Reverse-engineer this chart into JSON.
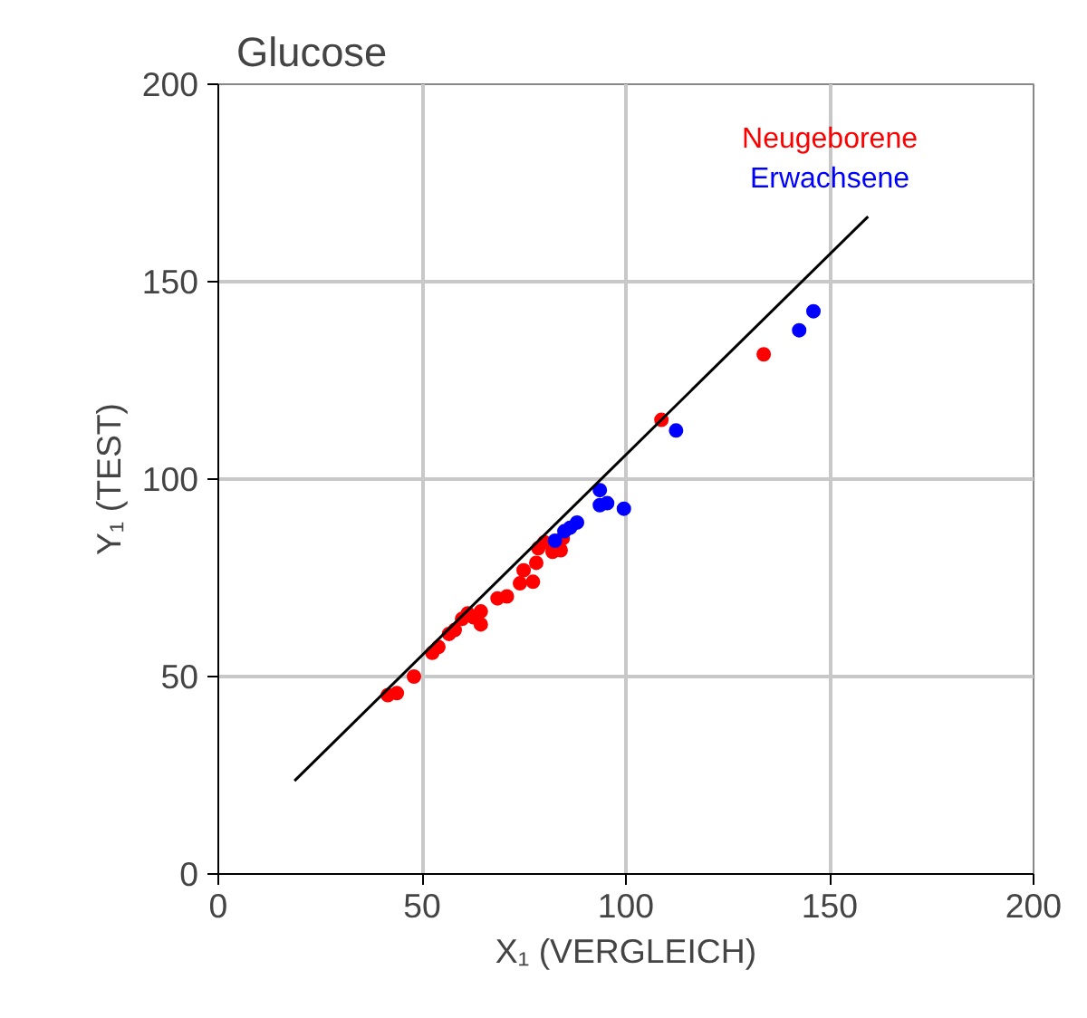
{
  "chart_data": {
    "type": "scatter",
    "title": "Glucose",
    "xlabel": "X₁ (VERGLEICH)",
    "ylabel": "Y₁ (TEST)",
    "xlim": [
      0,
      200
    ],
    "ylim": [
      0,
      200
    ],
    "xticks": [
      0,
      50,
      100,
      150,
      200
    ],
    "yticks": [
      0,
      50,
      100,
      150,
      200
    ],
    "grid": true,
    "legend": "top right",
    "marker": "circle",
    "series": [
      {
        "name": "Neugeborene",
        "color": "#ff0000",
        "x": [
          41.6,
          43.8,
          48,
          52.5,
          54,
          56.6,
          58,
          59.8,
          61.2,
          62.6,
          64.4,
          64.4,
          68.5,
          70.8,
          74,
          74.9,
          77.2,
          78,
          78.5,
          80,
          82,
          84,
          84.5,
          108.7,
          133.8
        ],
        "values": [
          45.3,
          45.8,
          50,
          56,
          57.5,
          60.8,
          61.8,
          64.6,
          66,
          65,
          66.5,
          63.2,
          69.8,
          70.3,
          73.6,
          76.9,
          74,
          78.8,
          82.5,
          84,
          81.6,
          82,
          85,
          115,
          131.6
        ]
      },
      {
        "name": "Erwachsene",
        "color": "#0000ff",
        "x": [
          82.6,
          84.9,
          86.3,
          88,
          93.6,
          93.6,
          95.4,
          99.5,
          112.3,
          142.5,
          146
        ],
        "values": [
          84.4,
          86.8,
          87.7,
          89,
          97.2,
          93.4,
          93.9,
          92.5,
          112.3,
          137.7,
          142.5
        ]
      },
      {
        "type": "line",
        "color": "#000000",
        "line_style": "solid",
        "marker": "none",
        "x": [
          18.7,
          159.4
        ],
        "values": [
          23.6,
          166.5
        ]
      }
    ]
  }
}
